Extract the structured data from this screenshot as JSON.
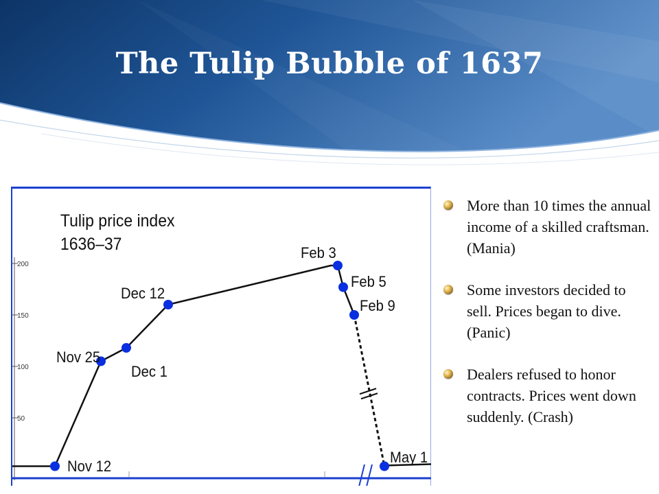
{
  "slide": {
    "title": "The Tulip Bubble of 1637",
    "colors": {
      "header_dark": "#0d3466",
      "header_light": "#5a8dc8",
      "chart_frame": "#1a3fd1",
      "point": "#0a2fe0"
    }
  },
  "bullets": [
    {
      "text": "More than 10 times the annual income of a skilled craftsman. (Mania)",
      "icon": "bullet-orb-icon"
    },
    {
      "text": "Some investors decided to sell. Prices began to dive. (Panic)",
      "icon": "bullet-orb-icon"
    },
    {
      "text": "Dealers refused to honor contracts. Prices went down suddenly. (Crash)",
      "icon": "bullet-orb-icon"
    }
  ],
  "chart_data": {
    "type": "line",
    "title": "Tulip price index\n1636–37",
    "xlabel": "",
    "ylabel": "",
    "yticks": [
      "50",
      "100",
      "150",
      "200"
    ],
    "ylim": [
      0,
      200
    ],
    "points": [
      {
        "label": "Nov 12",
        "value": 3
      },
      {
        "label": "Nov 25",
        "value": 105
      },
      {
        "label": "Dec 1",
        "value": 118
      },
      {
        "label": "Dec 12",
        "value": 160
      },
      {
        "label": "Feb 3",
        "value": 198
      },
      {
        "label": "Feb 5",
        "value": 177
      },
      {
        "label": "Feb 9",
        "value": 150
      },
      {
        "label": "May 1",
        "value": 3
      }
    ],
    "dashed_segment": [
      "Feb 9",
      "May 1"
    ],
    "grid": false
  }
}
